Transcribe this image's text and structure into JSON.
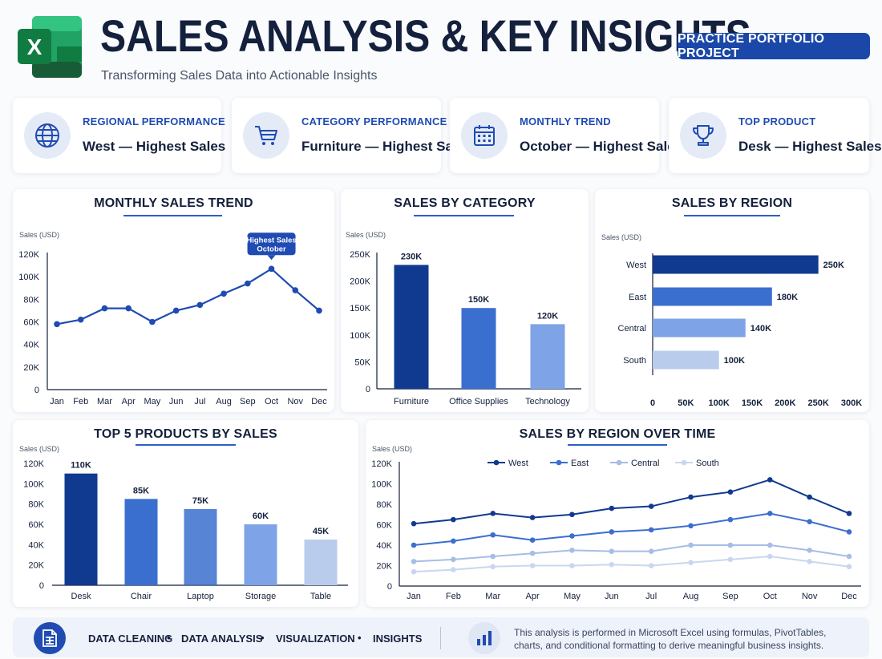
{
  "header": {
    "logo_letter": "X",
    "title": "SALES ANALYSIS & KEY INSIGHTS",
    "subtitle": "Transforming Sales Data into Actionable Insights",
    "badge": "PRACTICE PORTFOLIO PROJECT",
    "logo_icon": "excel-logo-icon"
  },
  "kpis": [
    {
      "label": "REGIONAL PERFORMANCE",
      "value": "West — Highest Sales",
      "icon": "globe-icon"
    },
    {
      "label": "CATEGORY PERFORMANCE",
      "value": "Furniture — Highest Sales",
      "icon": "cart-icon"
    },
    {
      "label": "MONTHLY TREND",
      "value": "October — Highest Sales",
      "icon": "calendar-icon"
    },
    {
      "label": "TOP PRODUCT",
      "value": "Desk — Highest Sales",
      "icon": "trophy-icon"
    }
  ],
  "colors": {
    "navy": "#0f3a8f",
    "blue": "#3b6fcf",
    "mid": "#7ea3e6",
    "light": "#b9ccec",
    "accent": "#1f4bb3"
  },
  "chart_data": [
    {
      "id": "monthly",
      "type": "line",
      "title": "MONTHLY SALES TREND",
      "ylabel": "Sales (USD)",
      "categories": [
        "Jan",
        "Feb",
        "Mar",
        "Apr",
        "May",
        "Jun",
        "Jul",
        "Aug",
        "Sep",
        "Oct",
        "Nov",
        "Dec"
      ],
      "values": [
        58000,
        62000,
        72000,
        72000,
        60000,
        70000,
        75000,
        85000,
        94000,
        107000,
        88000,
        70000
      ],
      "ylim": [
        0,
        120000
      ],
      "yticks": [
        "0",
        "20K",
        "40K",
        "60K",
        "80K",
        "100K",
        "120K"
      ],
      "annotation": {
        "index": 9,
        "lines": [
          "Highest Sales",
          "October"
        ]
      }
    },
    {
      "id": "category",
      "type": "bar",
      "title": "SALES BY CATEGORY",
      "ylabel": "Sales (USD)",
      "categories": [
        "Furniture",
        "Office Supplies",
        "Technology"
      ],
      "values": [
        230000,
        150000,
        120000
      ],
      "data_labels": [
        "230K",
        "150K",
        "120K"
      ],
      "ylim": [
        0,
        250000
      ],
      "yticks": [
        "0",
        "50K",
        "100K",
        "150K",
        "200K",
        "250K"
      ]
    },
    {
      "id": "region",
      "type": "bar",
      "orientation": "horizontal",
      "title": "SALES BY REGION",
      "ylabel": "Sales (USD)",
      "categories": [
        "West",
        "East",
        "Central",
        "South"
      ],
      "values": [
        250000,
        180000,
        140000,
        100000
      ],
      "data_labels": [
        "250K",
        "180K",
        "140K",
        "100K"
      ],
      "xlim": [
        0,
        300000
      ],
      "xticks": [
        "0",
        "50K",
        "100K",
        "150K",
        "200K",
        "250K",
        "300K"
      ]
    },
    {
      "id": "products",
      "type": "bar",
      "title": "TOP 5 PRODUCTS BY SALES",
      "ylabel": "Sales (USD)",
      "categories": [
        "Desk",
        "Chair",
        "Laptop",
        "Storage",
        "Table"
      ],
      "values": [
        110000,
        85000,
        75000,
        60000,
        45000
      ],
      "data_labels": [
        "110K",
        "85K",
        "75K",
        "60K",
        "45K"
      ],
      "ylim": [
        0,
        120000
      ],
      "yticks": [
        "0",
        "20K",
        "40K",
        "60K",
        "80K",
        "100K",
        "120K"
      ]
    },
    {
      "id": "region_time",
      "type": "line",
      "title": "SALES BY REGION OVER TIME",
      "ylabel": "Sales (USD)",
      "categories": [
        "Jan",
        "Feb",
        "Mar",
        "Apr",
        "May",
        "Jun",
        "Jul",
        "Aug",
        "Sep",
        "Oct",
        "Nov",
        "Dec"
      ],
      "ylim": [
        0,
        120000
      ],
      "yticks": [
        "0",
        "20K",
        "40K",
        "60K",
        "80K",
        "100K",
        "120K"
      ],
      "legend": "top",
      "series": [
        {
          "name": "West",
          "values": [
            61000,
            65000,
            71000,
            67000,
            70000,
            76000,
            78000,
            87000,
            92000,
            104000,
            87000,
            71000
          ]
        },
        {
          "name": "East",
          "values": [
            40000,
            44000,
            50000,
            45000,
            49000,
            53000,
            55000,
            59000,
            65000,
            71000,
            63000,
            53000
          ]
        },
        {
          "name": "Central",
          "values": [
            24000,
            26000,
            29000,
            32000,
            35000,
            34000,
            34000,
            40000,
            40000,
            40000,
            35000,
            29000
          ]
        },
        {
          "name": "South",
          "values": [
            14000,
            16000,
            19000,
            20000,
            20000,
            21000,
            20000,
            23000,
            26000,
            29000,
            24000,
            19000
          ]
        }
      ]
    }
  ],
  "footer": {
    "items": [
      "DATA CLEANING",
      "DATA ANALYSIS",
      "VISUALIZATION",
      "INSIGHTS"
    ],
    "note": "This analysis is performed in Microsoft Excel using formulas, PivotTables, charts, and conditional formatting to derive meaningful business insights.",
    "icon_left": "spreadsheet-icon",
    "icon_right": "bar-chart-icon"
  }
}
